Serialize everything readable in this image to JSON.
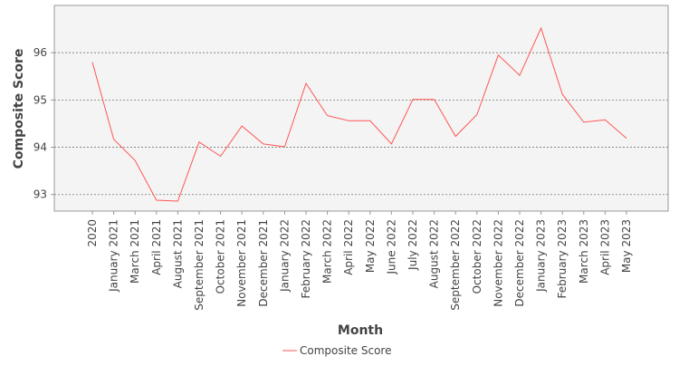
{
  "chart_data": {
    "type": "line",
    "xlabel": "Month",
    "ylabel": "Composite Score",
    "categories": [
      "2020",
      "January 2021",
      "March 2021",
      "April 2021",
      "August 2021",
      "September 2021",
      "October 2021",
      "November 2021",
      "December 2021",
      "January 2022",
      "February 2022",
      "March 2022",
      "April 2022",
      "May 2022",
      "June 2022",
      "July 2022",
      "August 2022",
      "September 2022",
      "October 2022",
      "November 2022",
      "December 2022",
      "January 2023",
      "February 2023",
      "March 2023",
      "April 2023",
      "May 2023"
    ],
    "series": [
      {
        "name": "Composite Score",
        "color": "#ff5555",
        "values": [
          95.8,
          94.17,
          93.72,
          92.88,
          92.86,
          94.11,
          93.81,
          94.45,
          94.07,
          94.01,
          95.35,
          94.67,
          94.56,
          94.56,
          94.07,
          95.01,
          95.01,
          94.23,
          94.69,
          95.95,
          95.52,
          96.52,
          95.12,
          94.53,
          94.58,
          94.19
        ]
      }
    ],
    "ylim": [
      92.65,
      97.0
    ],
    "yticks": [
      93,
      94,
      95,
      96
    ],
    "grid": true,
    "legend": {
      "position": "bottom",
      "entries": [
        "Composite Score"
      ]
    }
  }
}
